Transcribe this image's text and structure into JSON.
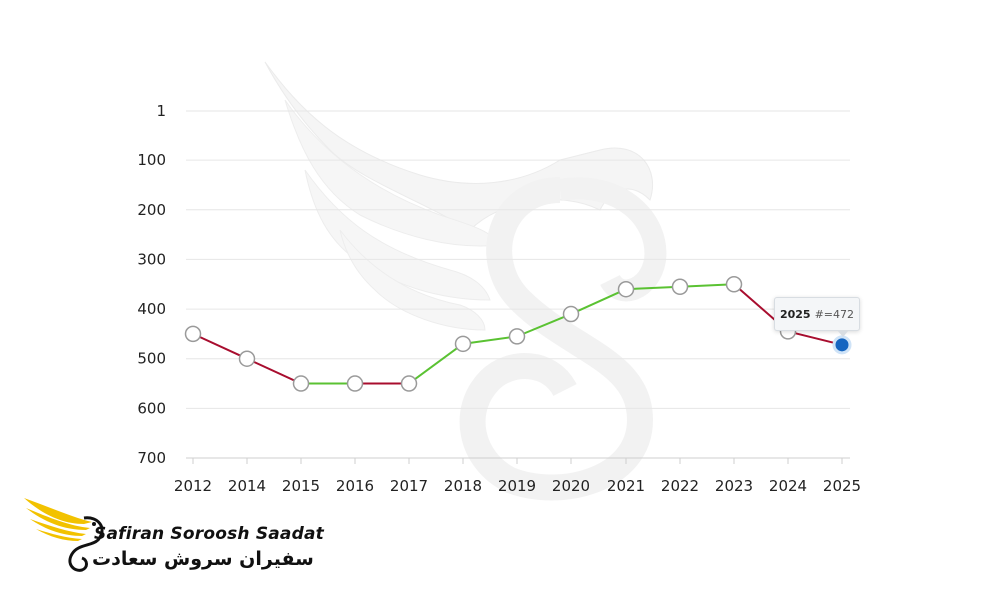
{
  "chart_data": {
    "type": "line",
    "x": [
      "2012",
      "2014",
      "2015",
      "2016",
      "2017",
      "2018",
      "2019",
      "2020",
      "2021",
      "2022",
      "2023",
      "2024",
      "2025"
    ],
    "y": [
      450,
      500,
      550,
      550,
      550,
      470,
      455,
      410,
      360,
      355,
      350,
      445,
      472
    ],
    "y_ticks": [
      "1",
      "100",
      "200",
      "300",
      "400",
      "500",
      "600",
      "700"
    ],
    "ylim": [
      1,
      700
    ],
    "y_inverted": true,
    "grid": true,
    "colors": {
      "rising": "#e0143c",
      "falling": "#5ac232",
      "down": "#a80d2e",
      "up": "#5ac232"
    },
    "highlight": {
      "year": "2025",
      "label": "#=472"
    }
  },
  "brand": {
    "name_en": "Safiran Soroosh Saadat",
    "name_fa": "سفیران سروش سعادت",
    "colors": {
      "wing": "#f2c200",
      "text": "#111111"
    }
  }
}
